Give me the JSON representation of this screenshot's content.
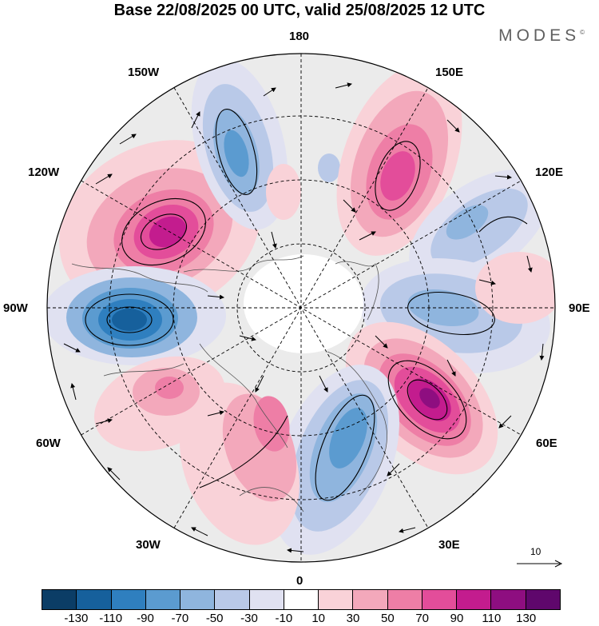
{
  "title": "Base 22/08/2025 00 UTC, valid 25/08/2025 12 UTC",
  "brand": "MODES",
  "brand_mark": "©",
  "longitude_labels": {
    "n180": "180",
    "e150": "150E",
    "e120": "120E",
    "e90": "90E",
    "e60": "60E",
    "e30": "30E",
    "zero": "0",
    "w30": "30W",
    "w60": "60W",
    "w90": "90W",
    "w120": "120W",
    "w150": "150W"
  },
  "vector_scale": "10",
  "colorbar": {
    "ticks": [
      "-130",
      "-110",
      "-90",
      "-70",
      "-50",
      "-30",
      "-10",
      "10",
      "30",
      "50",
      "70",
      "90",
      "110",
      "130"
    ],
    "colors": [
      "#0b3d66",
      "#16609c",
      "#2f7fbf",
      "#5b9bd0",
      "#8fb5de",
      "#b9c9e8",
      "#e0e1f1",
      "#ffffff",
      "#f9d2d8",
      "#f3a8bb",
      "#ee7ea6",
      "#e34d9a",
      "#c31c8e",
      "#8e0e80",
      "#5f076c"
    ]
  },
  "anomalies": [
    {
      "name": "anomaly-nw-positive",
      "value": 110
    },
    {
      "name": "anomaly-w-negative",
      "value": -110
    },
    {
      "name": "anomaly-n-negative",
      "value": -70
    },
    {
      "name": "anomaly-ne-positive",
      "value": 70
    },
    {
      "name": "anomaly-e-negative",
      "value": -50
    },
    {
      "name": "anomaly-se-positive",
      "value": 110
    },
    {
      "name": "anomaly-s-negative",
      "value": -70
    },
    {
      "name": "anomaly-sw-positive",
      "value": 50
    }
  ]
}
